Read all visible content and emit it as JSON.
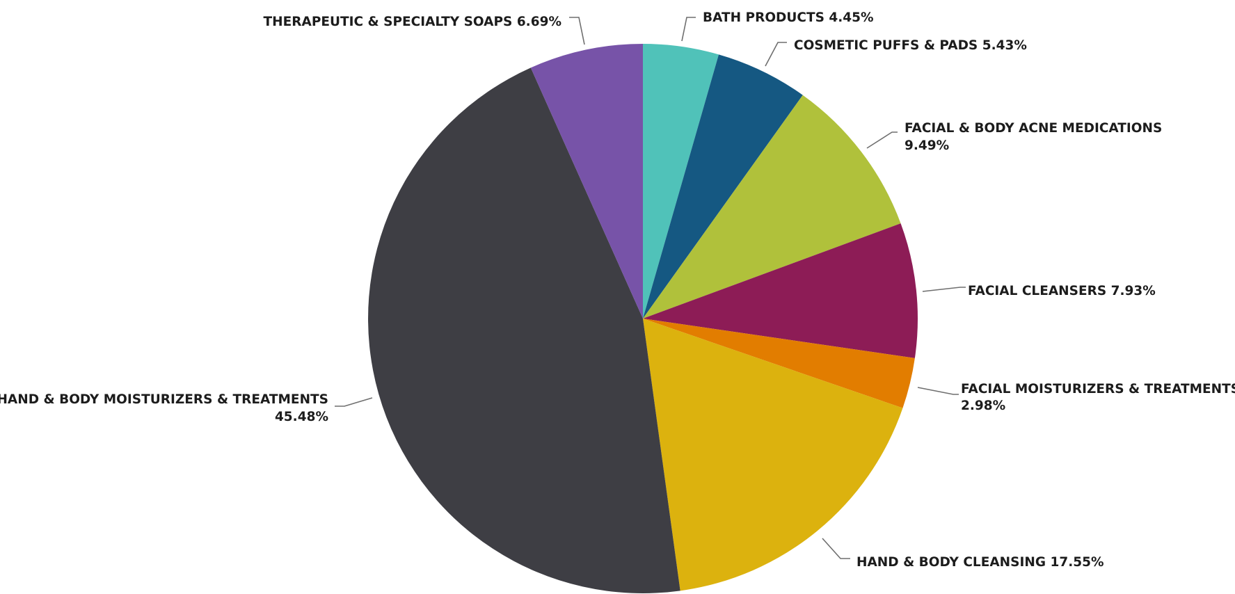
{
  "chart_data": {
    "type": "pie",
    "title": "",
    "start_angle_deg": 0,
    "direction": "clockwise",
    "slices": [
      {
        "name": "BATH PRODUCTS",
        "value": 4.45,
        "value_label": "4.45%",
        "color": "#50c2b9"
      },
      {
        "name": "COSMETIC PUFFS & PADS",
        "value": 5.43,
        "value_label": "5.43%",
        "color": "#155882"
      },
      {
        "name": "FACIAL & BODY ACNE MEDICATIONS",
        "value": 9.49,
        "value_label": "9.49%",
        "color": "#b0c13b"
      },
      {
        "name": "FACIAL CLEANSERS",
        "value": 7.93,
        "value_label": "7.93%",
        "color": "#8d1c56"
      },
      {
        "name": "FACIAL MOISTURIZERS & TREATMENTS",
        "value": 2.98,
        "value_label": "2.98%",
        "color": "#e27d00"
      },
      {
        "name": "HAND & BODY CLEANSING",
        "value": 17.55,
        "value_label": "17.55%",
        "color": "#dcb20e"
      },
      {
        "name": "HAND & BODY MOISTURIZERS & TREATMENTS",
        "value": 45.48,
        "value_label": "45.48%",
        "color": "#3e3e44"
      },
      {
        "name": "THERAPEUTIC & SPECIALTY SOAPS",
        "value": 6.69,
        "value_label": "6.69%",
        "color": "#7753a8"
      }
    ]
  }
}
